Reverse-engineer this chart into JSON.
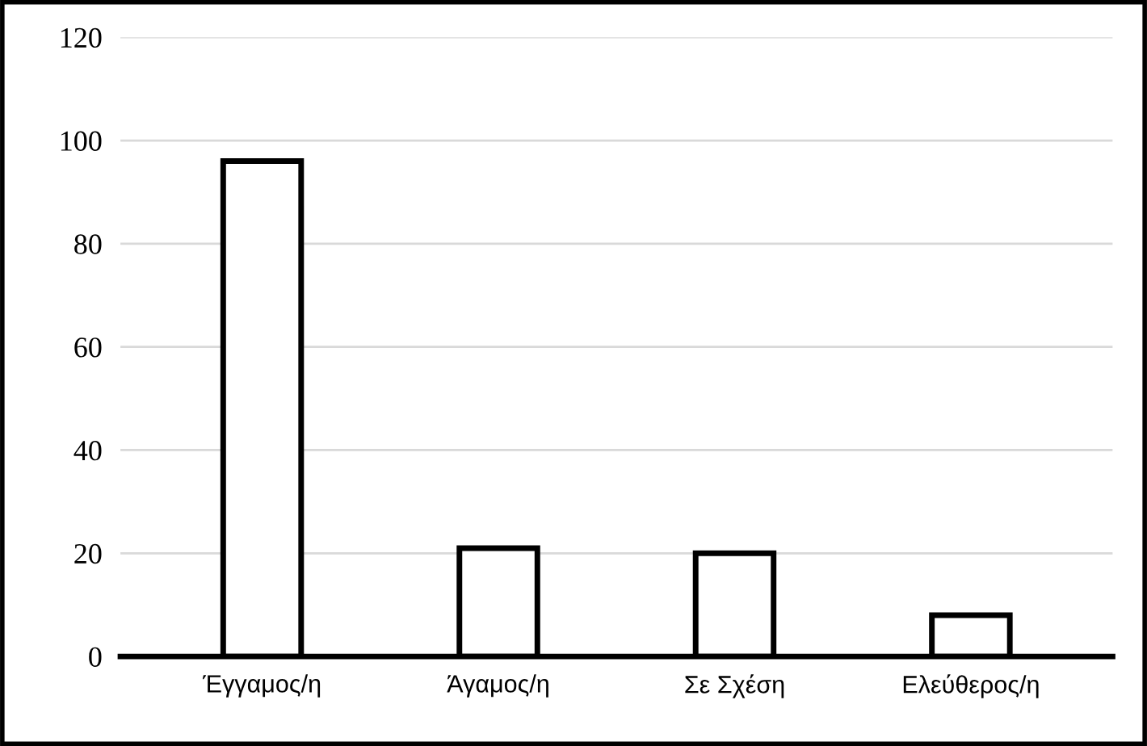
{
  "chart_data": {
    "type": "bar",
    "categories": [
      "Έγγαμος/η",
      "Άγαμος/η",
      "Σε Σχέση",
      "Ελεύθερος/η"
    ],
    "values": [
      96,
      21,
      20,
      8
    ],
    "color": "#ffffff",
    "ylim": [
      0,
      120
    ],
    "yticks": [
      0,
      20,
      40,
      60,
      80,
      100,
      120
    ],
    "grid": "y"
  }
}
